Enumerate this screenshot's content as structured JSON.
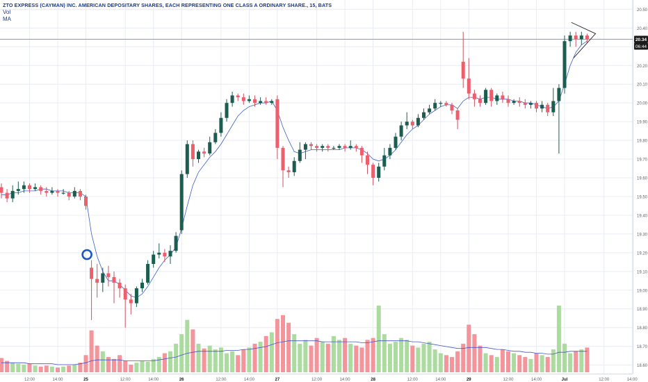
{
  "chart_data": {
    "type": "candlestick",
    "title": "ZTO EXPRESS (CAYMAN) INC. AMERICAN DEPOSITARY SHARES, EACH REPRESENTING ONE CLASS A ORDINARY SHARE., 15, BATS",
    "legend": [
      "Vol",
      "MA"
    ],
    "y_ticks": [
      "20.50",
      "20.40",
      "20.30",
      "20.20",
      "20.10",
      "20.00",
      "19.90",
      "19.80",
      "19.70",
      "19.60",
      "19.50",
      "19.40",
      "19.30",
      "19.20",
      "19.10",
      "19.00",
      "18.90",
      "18.80",
      "18.70",
      "18.60"
    ],
    "ylim": [
      18.58,
      20.52
    ],
    "x_ticks": [
      {
        "i": 5,
        "label": "12:00",
        "bold": false
      },
      {
        "i": 10,
        "label": "14:00",
        "bold": false
      },
      {
        "i": 15,
        "label": "25",
        "bold": true
      },
      {
        "i": 22,
        "label": "12:00",
        "bold": false
      },
      {
        "i": 27,
        "label": "14:00",
        "bold": false
      },
      {
        "i": 32,
        "label": "26",
        "bold": true
      },
      {
        "i": 39,
        "label": "12:00",
        "bold": false
      },
      {
        "i": 44,
        "label": "14:00",
        "bold": false
      },
      {
        "i": 49,
        "label": "27",
        "bold": true
      },
      {
        "i": 56,
        "label": "12:00",
        "bold": false
      },
      {
        "i": 61,
        "label": "14:00",
        "bold": false
      },
      {
        "i": 66,
        "label": "28",
        "bold": true
      },
      {
        "i": 73,
        "label": "12:00",
        "bold": false
      },
      {
        "i": 78,
        "label": "14:00",
        "bold": false
      },
      {
        "i": 83,
        "label": "29",
        "bold": true
      },
      {
        "i": 90,
        "label": "12:00",
        "bold": false
      },
      {
        "i": 95,
        "label": "14:00",
        "bold": false
      },
      {
        "i": 100,
        "label": "Jul",
        "bold": true
      },
      {
        "i": 107,
        "label": "12:00",
        "bold": false
      },
      {
        "i": 112,
        "label": "14:00",
        "bold": false
      }
    ],
    "price_label": "20.34",
    "price_value": 20.34,
    "countdown_label": "06:44",
    "candles": [
      [
        19.55,
        19.52,
        19.57,
        19.49
      ],
      [
        19.52,
        19.49,
        19.54,
        19.47
      ],
      [
        19.49,
        19.53,
        19.56,
        19.47
      ],
      [
        19.53,
        19.54,
        19.58,
        19.51
      ],
      [
        19.54,
        19.56,
        19.58,
        19.52
      ],
      [
        19.56,
        19.54,
        19.57,
        19.52
      ],
      [
        19.54,
        19.55,
        19.57,
        19.53
      ],
      [
        19.55,
        19.53,
        19.56,
        19.51
      ],
      [
        19.53,
        19.52,
        19.55,
        19.5
      ],
      [
        19.52,
        19.53,
        19.55,
        19.51
      ],
      [
        19.53,
        19.52,
        19.54,
        19.5
      ],
      [
        19.52,
        19.52,
        19.54,
        19.51
      ],
      [
        19.52,
        19.5,
        19.53,
        19.48
      ],
      [
        19.5,
        19.53,
        19.55,
        19.49
      ],
      [
        19.53,
        19.5,
        19.54,
        19.48
      ],
      [
        19.5,
        19.45,
        19.51,
        19.43
      ],
      [
        19.12,
        19.06,
        19.16,
        18.84
      ],
      [
        19.06,
        19.04,
        19.14,
        18.96
      ],
      [
        19.04,
        19.09,
        19.12,
        18.99
      ],
      [
        19.09,
        19.07,
        19.13,
        19.02
      ],
      [
        19.07,
        19.04,
        19.1,
        18.93
      ],
      [
        19.04,
        19.01,
        19.06,
        18.96
      ],
      [
        19.01,
        18.95,
        19.03,
        18.8
      ],
      [
        18.95,
        18.93,
        18.98,
        18.87
      ],
      [
        18.93,
        19.01,
        19.02,
        18.91
      ],
      [
        19.01,
        19.04,
        19.06,
        18.99
      ],
      [
        19.04,
        19.14,
        19.16,
        19.03
      ],
      [
        19.14,
        19.19,
        19.21,
        19.12
      ],
      [
        19.19,
        19.2,
        19.25,
        19.17
      ],
      [
        19.2,
        19.18,
        19.22,
        19.15
      ],
      [
        19.18,
        19.21,
        19.24,
        19.14
      ],
      [
        19.21,
        19.29,
        19.31,
        19.2
      ],
      [
        19.32,
        19.62,
        19.64,
        19.3
      ],
      [
        19.62,
        19.78,
        19.8,
        19.6
      ],
      [
        19.78,
        19.7,
        19.8,
        19.66
      ],
      [
        19.7,
        19.74,
        19.75,
        19.68
      ],
      [
        19.74,
        19.73,
        19.76,
        19.71
      ],
      [
        19.73,
        19.79,
        19.82,
        19.72
      ],
      [
        19.79,
        19.84,
        19.86,
        19.78
      ],
      [
        19.84,
        19.92,
        19.95,
        19.82
      ],
      [
        19.92,
        20.0,
        20.02,
        19.9
      ],
      [
        20.0,
        20.04,
        20.06,
        19.98
      ],
      [
        20.04,
        20.03,
        20.05,
        20.01
      ],
      [
        20.03,
        20.01,
        20.05,
        19.99
      ],
      [
        20.01,
        20.02,
        20.04,
        20.0
      ],
      [
        20.02,
        20.0,
        20.04,
        19.98
      ],
      [
        20.0,
        20.01,
        20.03,
        19.99
      ],
      [
        20.01,
        20.0,
        20.03,
        19.99
      ],
      [
        20.0,
        20.01,
        20.02,
        19.99
      ],
      [
        20.02,
        19.76,
        20.04,
        19.7
      ],
      [
        19.76,
        19.64,
        19.77,
        19.55
      ],
      [
        19.64,
        19.63,
        19.66,
        19.6
      ],
      [
        19.63,
        19.69,
        19.71,
        19.61
      ],
      [
        19.69,
        19.75,
        19.79,
        19.68
      ],
      [
        19.75,
        19.78,
        19.79,
        19.7
      ],
      [
        19.78,
        19.77,
        19.79,
        19.75
      ],
      [
        19.77,
        19.76,
        19.78,
        19.74
      ],
      [
        19.76,
        19.77,
        19.78,
        19.74
      ],
      [
        19.77,
        19.76,
        19.78,
        19.74
      ],
      [
        19.76,
        19.76,
        19.77,
        19.75
      ],
      [
        19.76,
        19.77,
        19.78,
        19.75
      ],
      [
        19.77,
        19.76,
        19.78,
        19.74
      ],
      [
        19.76,
        19.77,
        19.8,
        19.75
      ],
      [
        19.77,
        19.76,
        19.78,
        19.74
      ],
      [
        19.76,
        19.72,
        19.77,
        19.68
      ],
      [
        19.72,
        19.67,
        19.74,
        19.62
      ],
      [
        19.67,
        19.6,
        19.68,
        19.56
      ],
      [
        19.6,
        19.66,
        19.68,
        19.58
      ],
      [
        19.66,
        19.72,
        19.76,
        19.64
      ],
      [
        19.72,
        19.76,
        19.78,
        19.7
      ],
      [
        19.76,
        19.82,
        19.84,
        19.75
      ],
      [
        19.82,
        19.88,
        19.9,
        19.8
      ],
      [
        19.88,
        19.9,
        19.95,
        19.86
      ],
      [
        19.9,
        19.88,
        19.91,
        19.86
      ],
      [
        19.88,
        19.92,
        19.94,
        19.87
      ],
      [
        19.92,
        19.95,
        19.97,
        19.91
      ],
      [
        19.95,
        19.97,
        19.99,
        19.94
      ],
      [
        19.97,
        20.0,
        20.02,
        19.96
      ],
      [
        20.0,
        20.0,
        20.01,
        19.98
      ],
      [
        20.0,
        19.99,
        20.01,
        19.98
      ],
      [
        19.99,
        19.96,
        20.0,
        19.94
      ],
      [
        19.96,
        19.91,
        19.97,
        19.86
      ],
      [
        20.22,
        20.13,
        20.38,
        20.08
      ],
      [
        20.13,
        20.05,
        20.24,
        20.02
      ],
      [
        20.05,
        20.02,
        20.07,
        19.98
      ],
      [
        20.02,
        20.0,
        20.04,
        19.98
      ],
      [
        20.0,
        20.07,
        20.08,
        19.99
      ],
      [
        20.07,
        20.01,
        20.08,
        19.98
      ],
      [
        20.01,
        20.04,
        20.05,
        19.99
      ],
      [
        20.04,
        20.02,
        20.06,
        20.0
      ],
      [
        20.02,
        20.0,
        20.04,
        19.98
      ],
      [
        20.0,
        20.01,
        20.02,
        19.99
      ],
      [
        20.01,
        20.0,
        20.03,
        19.98
      ],
      [
        20.0,
        19.99,
        20.02,
        19.97
      ],
      [
        19.99,
        20.0,
        20.01,
        19.97
      ],
      [
        20.0,
        19.97,
        20.01,
        19.95
      ],
      [
        19.97,
        19.99,
        20.01,
        19.95
      ],
      [
        19.99,
        19.95,
        20.0,
        19.93
      ],
      [
        19.95,
        20.01,
        20.08,
        19.93
      ],
      [
        20.01,
        20.08,
        20.1,
        19.73
      ],
      [
        20.08,
        20.33,
        20.36,
        20.05
      ],
      [
        20.33,
        20.36,
        20.38,
        20.3
      ],
      [
        20.36,
        20.34,
        20.38,
        20.3
      ],
      [
        20.34,
        20.36,
        20.38,
        20.31
      ],
      [
        20.36,
        20.34,
        20.37,
        20.32
      ]
    ],
    "volume": [
      15,
      12,
      10,
      9,
      8,
      9,
      7,
      6,
      7,
      6,
      5,
      6,
      7,
      8,
      10,
      18,
      44,
      28,
      22,
      16,
      14,
      18,
      12,
      8,
      10,
      12,
      11,
      14,
      16,
      20,
      22,
      30,
      40,
      55,
      45,
      30,
      25,
      28,
      24,
      26,
      20,
      22,
      18,
      24,
      26,
      30,
      32,
      38,
      42,
      56,
      60,
      52,
      40,
      30,
      34,
      28,
      36,
      32,
      30,
      38,
      34,
      36,
      30,
      28,
      26,
      34,
      36,
      70,
      40,
      30,
      32,
      36,
      34,
      28,
      26,
      30,
      32,
      24,
      20,
      18,
      16,
      22,
      30,
      50,
      40,
      28,
      20,
      18,
      16,
      24,
      22,
      20,
      18,
      16,
      14,
      20,
      18,
      16,
      24,
      70,
      30,
      20,
      22,
      24,
      26
    ],
    "ma": [
      19.51,
      19.51,
      19.52,
      19.52,
      19.53,
      19.53,
      19.53,
      19.54,
      19.54,
      19.53,
      19.53,
      19.53,
      19.52,
      19.52,
      19.52,
      19.5,
      19.3,
      19.18,
      19.1,
      19.05,
      19.05,
      19.03,
      19.0,
      18.97,
      18.96,
      18.98,
      19.02,
      19.07,
      19.12,
      19.16,
      19.19,
      19.23,
      19.33,
      19.45,
      19.56,
      19.63,
      19.67,
      19.71,
      19.74,
      19.78,
      19.83,
      19.88,
      19.93,
      19.96,
      19.98,
      19.99,
      20.0,
      20.0,
      20.01,
      19.96,
      19.87,
      19.8,
      19.74,
      19.73,
      19.74,
      19.75,
      19.75,
      19.75,
      19.75,
      19.75,
      19.75,
      19.76,
      19.76,
      19.76,
      19.75,
      19.73,
      19.7,
      19.69,
      19.7,
      19.72,
      19.75,
      19.79,
      19.83,
      19.86,
      19.88,
      19.91,
      19.94,
      19.96,
      19.98,
      19.99,
      19.99,
      19.97,
      20.01,
      20.03,
      20.03,
      20.02,
      20.03,
      20.03,
      20.02,
      20.02,
      20.02,
      20.01,
      20.01,
      20.0,
      20.0,
      19.99,
      19.98,
      19.97,
      19.98,
      20.01,
      20.1,
      20.2,
      20.27,
      20.31,
      20.33
    ],
    "vol_ma": [
      10,
      10,
      10,
      10,
      10,
      9,
      9,
      9,
      9,
      9,
      8,
      8,
      8,
      8,
      9,
      10,
      12,
      13,
      13,
      13,
      13,
      13,
      12,
      12,
      12,
      12,
      12,
      12,
      13,
      14,
      15,
      16,
      18,
      20,
      21,
      22,
      22,
      22,
      22,
      22,
      23,
      23,
      23,
      24,
      24,
      25,
      26,
      27,
      29,
      31,
      32,
      33,
      33,
      33,
      33,
      33,
      33,
      32,
      32,
      32,
      32,
      32,
      32,
      32,
      31,
      31,
      32,
      33,
      33,
      33,
      33,
      33,
      33,
      32,
      32,
      31,
      30,
      29,
      28,
      27,
      26,
      25,
      25,
      26,
      26,
      26,
      26,
      25,
      24,
      24,
      23,
      22,
      22,
      21,
      21,
      20,
      20,
      19,
      19,
      21,
      21,
      22,
      22,
      22,
      22
    ],
    "colors": {
      "up": "#1b5e4f",
      "down": "#ed5f6d",
      "wick": "#888888",
      "ma": "#3b5fc9",
      "vol_up": "#a6d99a",
      "vol_down": "#f28f96",
      "vol_ma": "#4455cc",
      "marker": "#1a56c8",
      "price_line": "#9598a1",
      "price_label_bg": "#1b1b1b",
      "axis_text": "#5d606b",
      "grid": "#e8ecf3"
    }
  }
}
